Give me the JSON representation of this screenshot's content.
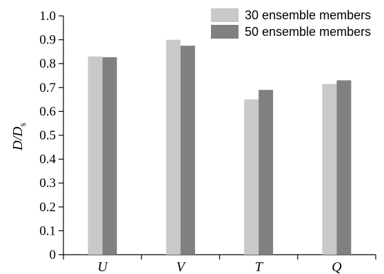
{
  "chart_data": {
    "type": "bar",
    "title": "",
    "categories": [
      "U",
      "V",
      "T",
      "Q"
    ],
    "series": [
      {
        "name": "30 ensemble members",
        "color": "#c9c9c9",
        "values": [
          0.83,
          0.9,
          0.65,
          0.715
        ]
      },
      {
        "name": "50 ensemble members",
        "color": "#808080",
        "values": [
          0.827,
          0.875,
          0.69,
          0.73
        ]
      }
    ],
    "xlabel": "",
    "ylabel": {
      "main": "D/D",
      "subscript": "s"
    },
    "ylim": [
      0,
      1.0
    ],
    "yticks": [
      0,
      0.1,
      0.2,
      0.3,
      0.4,
      0.5,
      0.6,
      0.7,
      0.8,
      0.9,
      1.0
    ],
    "ytick_labels": [
      "0",
      "0.1",
      "0.2",
      "0.3",
      "0.4",
      "0.5",
      "0.6",
      "0.7",
      "0.8",
      "0.9",
      "1.0"
    ],
    "grid": false,
    "legend": "top-right"
  }
}
